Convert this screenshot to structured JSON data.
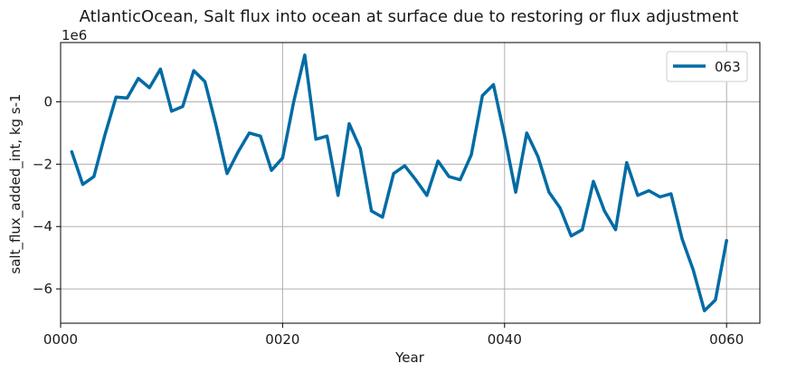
{
  "chart_data": {
    "type": "line",
    "title": "AtlanticOcean, Salt flux into ocean at surface due to restoring or flux adjustment",
    "xlabel": "Year",
    "ylabel": "salt_flux_added_int, kg s-1",
    "offset_label": "1e6",
    "xlim": [
      0,
      63
    ],
    "ylim": [
      -7.1,
      1.9
    ],
    "x_ticks": [
      0,
      20,
      40,
      60
    ],
    "x_tick_labels": [
      "0000",
      "0020",
      "0040",
      "0060"
    ],
    "y_ticks": [
      -6,
      -4,
      -2,
      0
    ],
    "y_tick_labels": [
      "−6",
      "−4",
      "−2",
      "0"
    ],
    "grid": true,
    "legend_position": "top-right",
    "series": [
      {
        "name": "063",
        "color": "#006ba4",
        "x": [
          1,
          2,
          3,
          4,
          5,
          6,
          7,
          8,
          9,
          10,
          11,
          12,
          13,
          14,
          15,
          16,
          17,
          18,
          19,
          20,
          21,
          22,
          23,
          24,
          25,
          26,
          27,
          28,
          29,
          30,
          31,
          32,
          33,
          34,
          35,
          36,
          37,
          38,
          39,
          40,
          41,
          42,
          43,
          44,
          45,
          46,
          47,
          48,
          49,
          50,
          51,
          52,
          53,
          54,
          55,
          56,
          57,
          58,
          59,
          60
        ],
        "values": [
          -1.6,
          -2.65,
          -2.4,
          -1.05,
          0.15,
          0.12,
          0.75,
          0.45,
          1.05,
          -0.3,
          -0.15,
          1.0,
          0.65,
          -0.75,
          -2.3,
          -1.6,
          -1.0,
          -1.1,
          -2.2,
          -1.8,
          0.0,
          1.5,
          -1.2,
          -1.1,
          -3.0,
          -0.7,
          -1.5,
          -3.5,
          -3.7,
          -2.3,
          -2.05,
          -2.5,
          -3.0,
          -1.9,
          -2.4,
          -2.5,
          -1.7,
          0.2,
          0.55,
          -1.1,
          -2.9,
          -1.0,
          -1.75,
          -2.9,
          -3.4,
          -4.3,
          -4.1,
          -2.55,
          -3.5,
          -4.1,
          -1.95,
          -3.0,
          -2.85,
          -3.05,
          -2.95,
          -4.4,
          -5.4,
          -6.7,
          -6.35,
          -4.45
        ]
      }
    ]
  }
}
